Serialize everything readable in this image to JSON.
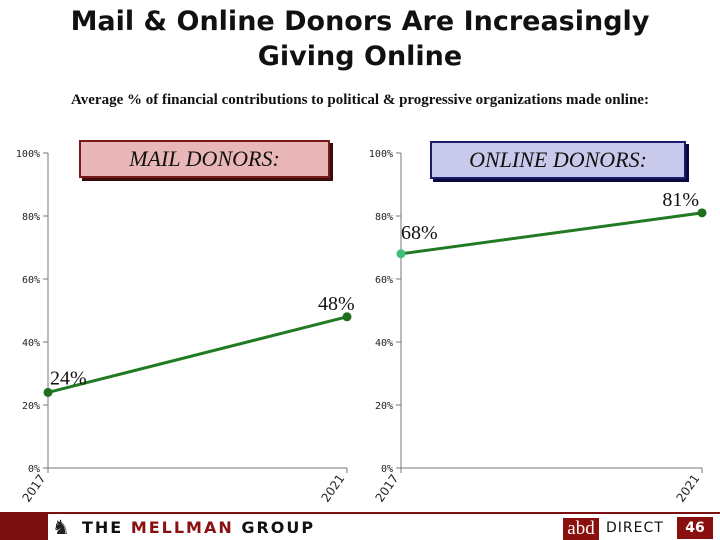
{
  "title_line1": "Mail & Online Donors Are Increasingly",
  "title_line2": "Giving Online",
  "subtitle": "Average % of financial contributions to political & progressive organizations made online:",
  "chart_data": [
    {
      "type": "line",
      "title": "MAIL DONORS:",
      "x": [
        "2017",
        "2021"
      ],
      "values": [
        24,
        48
      ],
      "labels": [
        "24%",
        "48%"
      ],
      "ylim": [
        0,
        100
      ],
      "yticks": [
        "0%",
        "20%",
        "40%",
        "60%",
        "80%",
        "100%"
      ],
      "line_color": "#217a21",
      "start_color": "#1f6f1f",
      "end_color": "#1f6f1f"
    },
    {
      "type": "line",
      "title": "ONLINE DONORS:",
      "x": [
        "2017",
        "2021"
      ],
      "values": [
        68,
        81
      ],
      "labels": [
        "68%",
        "81%"
      ],
      "ylim": [
        0,
        100
      ],
      "yticks": [
        "0%",
        "20%",
        "40%",
        "60%",
        "80%",
        "100%"
      ],
      "line_color": "#217a21",
      "start_color": "#3cc07a",
      "end_color": "#1f6f1f"
    }
  ],
  "footer": {
    "mellman_prefix": "THE ",
    "mellman_highlight": "MELLMAN",
    "mellman_suffix": " GROUP",
    "abd": "abd",
    "direct": "DIRECT",
    "page_number": "46"
  }
}
